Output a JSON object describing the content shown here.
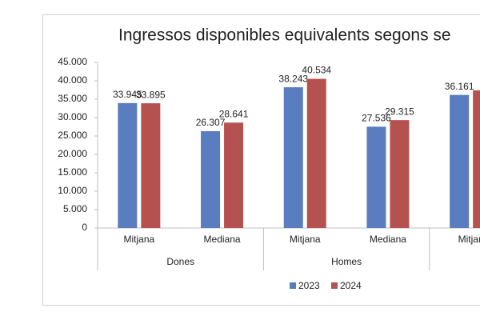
{
  "chart_data": {
    "type": "bar",
    "title": "Ingressos disponibles equivalents segons se",
    "categories": [
      "Mitjana",
      "Mediana",
      "Mitjana",
      "Mediana",
      "Mitjan"
    ],
    "groups": [
      "Dones",
      "Homes"
    ],
    "series": [
      {
        "name": "2023",
        "color": "#5a7dbf",
        "values": [
          33945,
          26307,
          38243,
          27536,
          36161
        ],
        "value_labels": [
          "33.945",
          "26.307",
          "38.243",
          "27.536",
          "36.161"
        ]
      },
      {
        "name": "2024",
        "color": "#b5524f",
        "values": [
          33895,
          28641,
          40534,
          29315,
          37400
        ],
        "value_labels": [
          "33.895",
          "28.641",
          "40.534",
          "29.315",
          null
        ]
      }
    ],
    "ylim": [
      0,
      45000
    ],
    "yticks": [
      0,
      {
        "value": 5000,
        "label": "5.000"
      },
      {
        "value": 10000,
        "label": "10.000"
      },
      {
        "value": 15000,
        "label": "15.000"
      },
      {
        "value": 20000,
        "label": "20.000"
      },
      {
        "value": 25000,
        "label": "25.000"
      },
      {
        "value": 30000,
        "label": "30.000"
      },
      {
        "value": 35000,
        "label": "35.000"
      },
      {
        "value": 40000,
        "label": "40.000"
      },
      {
        "value": 45000,
        "label": "45.000"
      }
    ],
    "legend": "bottom",
    "grid": false
  }
}
